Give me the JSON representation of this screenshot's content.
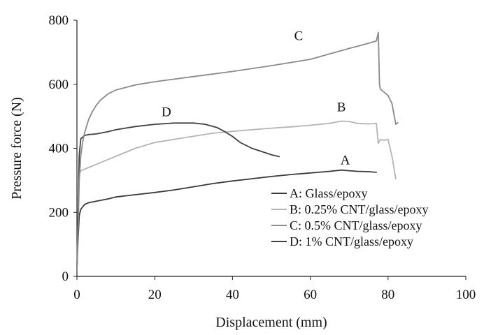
{
  "chart_data": {
    "type": "line",
    "xlabel": "Displacement (mm)",
    "ylabel": "Pressure force (N)",
    "xlim": [
      0,
      100
    ],
    "ylim": [
      0,
      800
    ],
    "xticks": [
      "0",
      "20",
      "40",
      "60",
      "80",
      "100"
    ],
    "yticks": [
      "0",
      "200",
      "400",
      "600",
      "800"
    ],
    "grid": false,
    "legend_position": "bottom-right",
    "series": [
      {
        "tag": "A",
        "name": "A: Glass/epoxy",
        "color": "#3a3a3a",
        "x": [
          0.0,
          0.3,
          0.6,
          1.0,
          2.0,
          3.0,
          5.0,
          8.0,
          10,
          15,
          20,
          25,
          30,
          35,
          40,
          45,
          50,
          55,
          60,
          65,
          68,
          70,
          72,
          75,
          77
        ],
        "y": [
          30,
          120,
          190,
          210,
          225,
          230,
          235,
          242,
          248,
          255,
          262,
          270,
          280,
          290,
          298,
          305,
          312,
          318,
          323,
          328,
          332,
          330,
          328,
          327,
          325
        ]
      },
      {
        "tag": "B",
        "name": "B: 0.25% CNT/glass/epoxy",
        "color": "#b4b4b4",
        "x": [
          0.0,
          0.3,
          0.6,
          1.0,
          2.0,
          3.0,
          5.0,
          8.0,
          10,
          15,
          20,
          25,
          30,
          35,
          40,
          45,
          50,
          55,
          60,
          65,
          68,
          70,
          72,
          75,
          77,
          77.5,
          78,
          79,
          80,
          81,
          82
        ],
        "y": [
          20,
          200,
          320,
          330,
          335,
          340,
          350,
          365,
          375,
          400,
          418,
          428,
          438,
          447,
          453,
          458,
          463,
          467,
          472,
          478,
          485,
          484,
          478,
          476,
          478,
          415,
          428,
          425,
          428,
          375,
          305
        ]
      },
      {
        "tag": "C",
        "name": "C: 0.5% CNT/glass/epoxy",
        "color": "#8a8a8a",
        "x": [
          0.0,
          0.3,
          0.6,
          1.0,
          1.5,
          2.0,
          3.0,
          4.0,
          5.0,
          6.0,
          8.0,
          10,
          15,
          20,
          25,
          30,
          40,
          50,
          60,
          70,
          75,
          77,
          77.5,
          77.8,
          78,
          80,
          81,
          82,
          82.5
        ],
        "y": [
          20,
          150,
          300,
          380,
          420,
          450,
          490,
          515,
          535,
          550,
          570,
          582,
          598,
          608,
          616,
          624,
          640,
          658,
          678,
          712,
          728,
          735,
          762,
          600,
          585,
          565,
          540,
          475,
          480
        ]
      },
      {
        "tag": "D",
        "name": "D: 1% CNT/glass/epoxy",
        "color": "#404040",
        "x": [
          0.0,
          0.3,
          0.6,
          1.0,
          2.0,
          3.0,
          5.0,
          8.0,
          10,
          15,
          20,
          25,
          30,
          33,
          36,
          38,
          40,
          42,
          45,
          48,
          50,
          52
        ],
        "y": [
          20,
          200,
          380,
          430,
          440,
          443,
          445,
          452,
          458,
          468,
          475,
          479,
          479,
          475,
          465,
          452,
          437,
          418,
          400,
          388,
          380,
          374
        ]
      }
    ]
  }
}
